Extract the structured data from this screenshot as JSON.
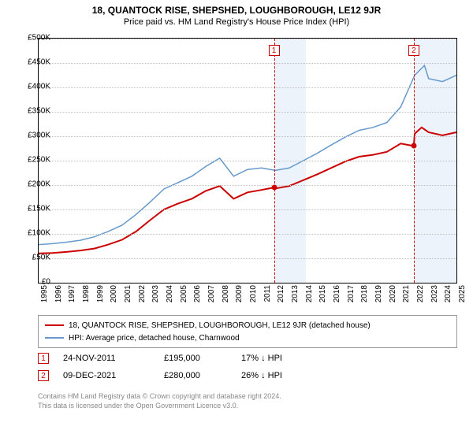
{
  "title": "18, QUANTOCK RISE, SHEPSHED, LOUGHBOROUGH, LE12 9JR",
  "subtitle": "Price paid vs. HM Land Registry's House Price Index (HPI)",
  "chart": {
    "type": "line",
    "background_color": "#ffffff",
    "grid_color": "#c0c0c0",
    "shaded_region_color": "#ecf3fa",
    "ylim": [
      0,
      500000
    ],
    "ytick_step": 50000,
    "yticks": [
      "£0",
      "£50K",
      "£100K",
      "£150K",
      "£200K",
      "£250K",
      "£300K",
      "£350K",
      "£400K",
      "£450K",
      "£500K"
    ],
    "xlim": [
      1995,
      2025
    ],
    "xticks": [
      "1995",
      "1996",
      "1997",
      "1998",
      "1999",
      "2000",
      "2001",
      "2002",
      "2003",
      "2004",
      "2005",
      "2006",
      "2007",
      "2008",
      "2009",
      "2010",
      "2011",
      "2012",
      "2013",
      "2014",
      "2015",
      "2016",
      "2017",
      "2018",
      "2019",
      "2020",
      "2021",
      "2022",
      "2023",
      "2024",
      "2025"
    ],
    "label_fontsize": 10,
    "series": [
      {
        "name": "property_price",
        "color": "#cc0000",
        "line_width": 2,
        "points": [
          [
            1995,
            60000
          ],
          [
            1996,
            61000
          ],
          [
            1997,
            63000
          ],
          [
            1998,
            66000
          ],
          [
            1999,
            70000
          ],
          [
            2000,
            78000
          ],
          [
            2001,
            88000
          ],
          [
            2002,
            105000
          ],
          [
            2003,
            128000
          ],
          [
            2004,
            150000
          ],
          [
            2005,
            162000
          ],
          [
            2006,
            172000
          ],
          [
            2007,
            188000
          ],
          [
            2008,
            198000
          ],
          [
            2009,
            172000
          ],
          [
            2010,
            185000
          ],
          [
            2011,
            190000
          ],
          [
            2011.9,
            195000
          ],
          [
            2012,
            193000
          ],
          [
            2013,
            198000
          ],
          [
            2014,
            210000
          ],
          [
            2015,
            222000
          ],
          [
            2016,
            235000
          ],
          [
            2017,
            248000
          ],
          [
            2018,
            258000
          ],
          [
            2019,
            262000
          ],
          [
            2020,
            268000
          ],
          [
            2021,
            285000
          ],
          [
            2021.94,
            280000
          ],
          [
            2022,
            305000
          ],
          [
            2022.5,
            318000
          ],
          [
            2023,
            308000
          ],
          [
            2024,
            302000
          ],
          [
            2025,
            308000
          ]
        ]
      },
      {
        "name": "hpi_index",
        "color": "#6699cc",
        "line_width": 1.5,
        "points": [
          [
            1995,
            78000
          ],
          [
            1996,
            80000
          ],
          [
            1997,
            83000
          ],
          [
            1998,
            87000
          ],
          [
            1999,
            94000
          ],
          [
            2000,
            105000
          ],
          [
            2001,
            118000
          ],
          [
            2002,
            140000
          ],
          [
            2003,
            165000
          ],
          [
            2004,
            192000
          ],
          [
            2005,
            205000
          ],
          [
            2006,
            218000
          ],
          [
            2007,
            238000
          ],
          [
            2008,
            255000
          ],
          [
            2009,
            218000
          ],
          [
            2010,
            232000
          ],
          [
            2011,
            235000
          ],
          [
            2012,
            230000
          ],
          [
            2013,
            235000
          ],
          [
            2014,
            250000
          ],
          [
            2015,
            265000
          ],
          [
            2016,
            282000
          ],
          [
            2017,
            298000
          ],
          [
            2018,
            312000
          ],
          [
            2019,
            318000
          ],
          [
            2020,
            328000
          ],
          [
            2021,
            360000
          ],
          [
            2022,
            425000
          ],
          [
            2022.7,
            445000
          ],
          [
            2023,
            418000
          ],
          [
            2024,
            412000
          ],
          [
            2025,
            425000
          ]
        ]
      }
    ],
    "shaded_regions": [
      {
        "from": 2011.9,
        "to": 2014.2
      },
      {
        "from": 2021.94,
        "to": 2025
      }
    ],
    "reference_lines": [
      {
        "x": 2011.9,
        "marker": "1"
      },
      {
        "x": 2021.94,
        "marker": "2"
      }
    ],
    "data_points": [
      {
        "x": 2011.9,
        "y": 195000
      },
      {
        "x": 2021.94,
        "y": 280000
      }
    ]
  },
  "legend": {
    "items": [
      {
        "color": "#cc0000",
        "width": 2,
        "label": "18, QUANTOCK RISE, SHEPSHED, LOUGHBOROUGH, LE12 9JR (detached house)"
      },
      {
        "color": "#6699cc",
        "width": 1.5,
        "label": "HPI: Average price, detached house, Charnwood"
      }
    ]
  },
  "sales": [
    {
      "marker": "1",
      "date": "24-NOV-2011",
      "price": "£195,000",
      "delta": "17% ↓ HPI"
    },
    {
      "marker": "2",
      "date": "09-DEC-2021",
      "price": "£280,000",
      "delta": "26% ↓ HPI"
    }
  ],
  "footer": {
    "line1": "Contains HM Land Registry data © Crown copyright and database right 2024.",
    "line2": "This data is licensed under the Open Government Licence v3.0."
  }
}
